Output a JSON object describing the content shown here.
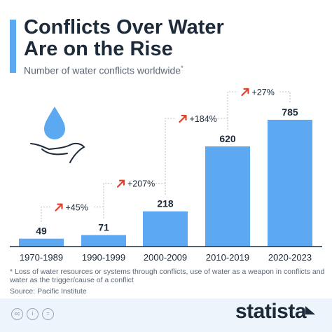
{
  "title": "Conflicts Over Water\nAre on the Rise",
  "subtitle": "Number of water conflicts worldwide",
  "subtitle_mark": "*",
  "footnote": "* Loss of water resources or systems through conflicts, use of water as a weapon in conflicts and water as the trigger/cause of a conflict",
  "source": "Source: Pacific Institute",
  "brand": "statista",
  "license_icons": [
    "cc",
    "i",
    "="
  ],
  "colors": {
    "bar": "#5da9f1",
    "arrow": "#e3412b",
    "text": "#1c2a3a",
    "bracket": "#b8bec6"
  },
  "icon": "water-drop-hand-icon",
  "chart_data": {
    "type": "bar",
    "categories": [
      "1970-1989",
      "1990-1999",
      "2000-2009",
      "2010-2019",
      "2020-2023"
    ],
    "values": [
      49,
      71,
      218,
      620,
      785
    ],
    "data_labels": [
      "49",
      "71",
      "218",
      "620",
      "785"
    ],
    "changes": [
      "+45%",
      "+207%",
      "+184%",
      "+27%"
    ],
    "title": "Conflicts Over Water Are on the Rise",
    "xlabel": "",
    "ylabel": "",
    "ylim": [
      0,
      800
    ],
    "grid": false,
    "legend": "none"
  }
}
